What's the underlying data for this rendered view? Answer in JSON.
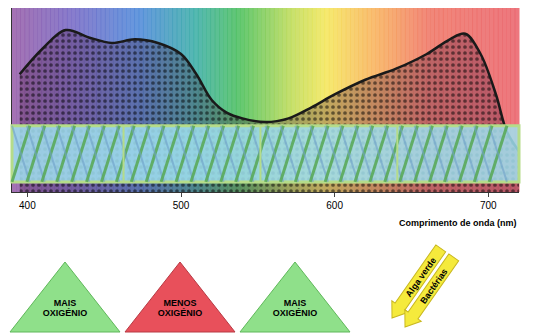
{
  "chart_data": {
    "type": "area",
    "x": [
      395,
      410,
      425,
      440,
      455,
      470,
      485,
      500,
      510,
      520,
      530,
      540,
      555,
      570,
      585,
      600,
      620,
      640,
      660,
      675,
      685,
      695,
      705,
      712,
      720
    ],
    "values": [
      64,
      78,
      88,
      84,
      81,
      83,
      81,
      75,
      64,
      50,
      43,
      40,
      38,
      40,
      46,
      53,
      61,
      67,
      75,
      83,
      86,
      75,
      53,
      33,
      22
    ],
    "color": "#1a1a1a",
    "xlim": [
      390,
      720
    ],
    "xticks": [
      400,
      500,
      600,
      700
    ],
    "ylim": [
      0,
      100
    ],
    "xlabel": "Comprimento de onda (nm)",
    "tick_labels": "x",
    "grid": false,
    "annotations": [
      "MAIS OXIGÉNIO",
      "MENOS OXIGÉNIO",
      "MAIS OXIGÉNIO",
      "Alga verde",
      "Bactérias"
    ]
  }
}
